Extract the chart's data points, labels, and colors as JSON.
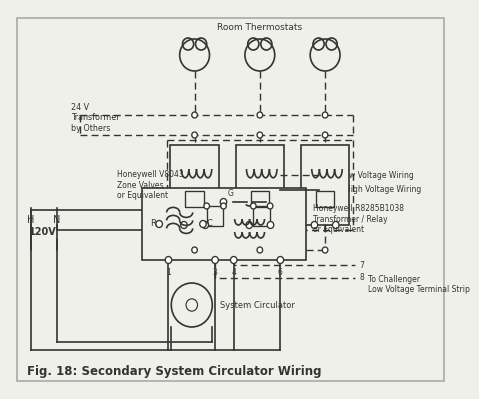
{
  "title": "Fig. 18: Secondary System Circulator Wiring",
  "bg_color": "#f0f0eb",
  "border_color": "#aaaaaa",
  "line_color": "#333333",
  "label_room_thermostats": "Room Thermostats",
  "label_24v": "24 V\nTransformer\nby Others",
  "label_zone_valves": "Honeywell V8043\nZone Valves\nor Equivalent",
  "label_relay": "Honeywell R8285B1038\nTransformer / Relay\nor Equivalent",
  "label_system_circ": "System Circulator",
  "label_120v": "120V",
  "label_H": "H",
  "label_N": "N",
  "label_1": "1",
  "label_3": "3",
  "label_4": "4",
  "label_6": "6",
  "label_7": "7",
  "label_8": "8",
  "label_R": "R",
  "label_C": "C",
  "label_G": "G",
  "label_terminal": "To Challenger\nLow Voltage Terminal Strip",
  "legend_dashed": "24V Low Voltage Wiring",
  "legend_solid": "120V High Voltage Wiring"
}
